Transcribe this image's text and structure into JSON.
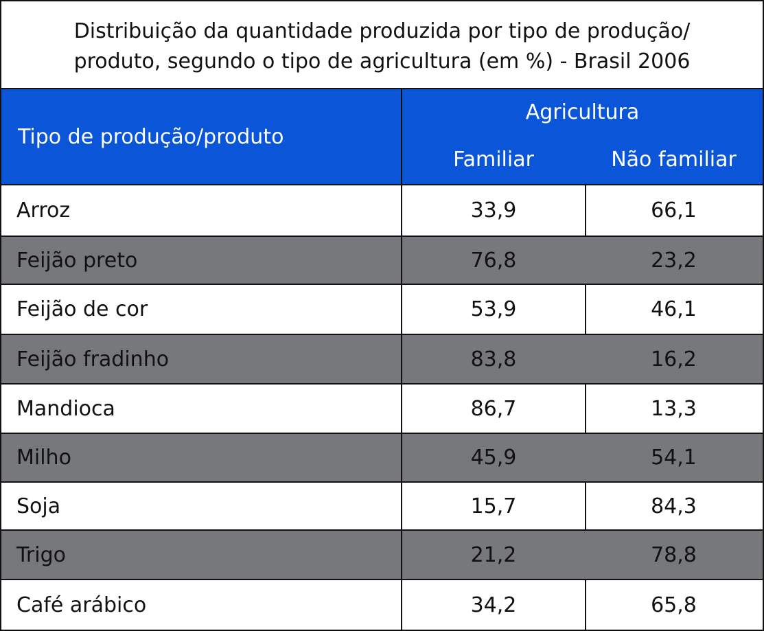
{
  "title": {
    "lines": [
      "Distribuição da quantidade produzida por tipo de produção/",
      "produto, segundo o tipo de agricultura (em %) - Brasil 2006"
    ]
  },
  "table": {
    "header": {
      "row_label": "Tipo de produção/produto",
      "group": "Agricultura",
      "columns": [
        "Familiar",
        "Não familiar"
      ]
    },
    "rows": [
      [
        "Arroz",
        "33,9",
        "66,1"
      ],
      [
        "Feijão preto",
        "76,8",
        "23,2"
      ],
      [
        "Feijão de cor",
        "53,9",
        "46,1"
      ],
      [
        "Feijão fradinho",
        "83,8",
        "16,2"
      ],
      [
        "Mandioca",
        "86,7",
        "13,3"
      ],
      [
        "Milho",
        "45,9",
        "54,1"
      ],
      [
        "Soja",
        "15,7",
        "84,3"
      ],
      [
        "Trigo",
        "21,2",
        "78,8"
      ],
      [
        "Café arábico",
        "34,2",
        "65,8"
      ]
    ]
  }
}
